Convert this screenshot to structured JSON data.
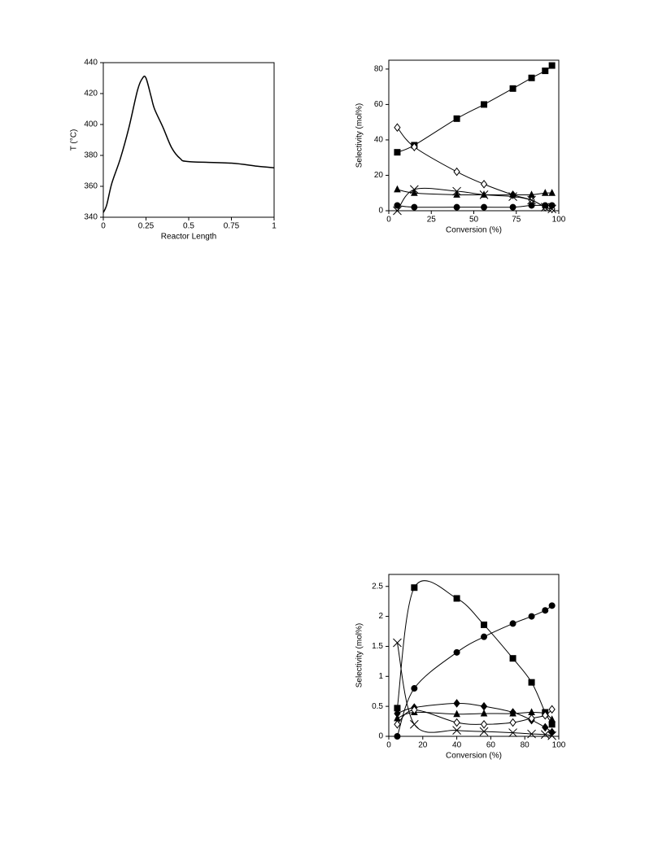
{
  "chart_data": [
    {
      "type": "line",
      "y_label": "T (°C)",
      "x_label": "Reactor Length",
      "x": [
        0,
        0.02,
        0.05,
        0.1,
        0.15,
        0.2,
        0.23,
        0.25,
        0.28,
        0.3,
        0.35,
        0.4,
        0.45,
        0.5,
        0.75,
        0.9,
        1
      ],
      "series": [
        {
          "color": "#000000",
          "values": [
            343,
            348,
            362,
            378,
            398,
            422,
            430,
            430,
            418,
            410,
            398,
            385,
            378,
            376,
            375,
            373,
            372
          ]
        }
      ],
      "xlim": [
        0,
        1
      ],
      "ylim": [
        340,
        440
      ],
      "xticks": [
        0,
        0.25,
        0.5,
        0.75,
        1
      ],
      "yticks": [
        340,
        360,
        380,
        400,
        420,
        440
      ]
    },
    {
      "type": "scatter",
      "y_label": "Selectivity (mol%)",
      "x_label": "Conversion (%)",
      "x": [
        5,
        15,
        40,
        56,
        73,
        84,
        92,
        96
      ],
      "series": [
        {
          "marker": "square",
          "color": "#000000",
          "values": [
            33,
            37,
            52,
            60,
            69,
            75,
            79,
            82
          ]
        },
        {
          "marker": "open-diamond",
          "color": "#000000",
          "values": [
            47,
            36,
            22,
            15,
            9,
            6,
            2,
            1
          ]
        },
        {
          "marker": "triangle",
          "color": "#000000",
          "values": [
            12,
            10,
            9,
            9,
            9,
            9,
            10,
            10
          ]
        },
        {
          "marker": "cross",
          "color": "#000000",
          "values": [
            0,
            12,
            11,
            9,
            8,
            6,
            2,
            1
          ]
        },
        {
          "marker": "circle",
          "color": "#000000",
          "values": [
            3,
            2,
            2,
            2,
            2,
            3,
            3,
            3
          ]
        }
      ],
      "xlim": [
        0,
        100
      ],
      "ylim": [
        0,
        85
      ],
      "xticks": [
        0,
        25,
        50,
        75,
        100
      ],
      "yticks": [
        0,
        20,
        40,
        60,
        80
      ]
    },
    {
      "type": "scatter",
      "y_label": "Selectivity (mol%)",
      "x_label": "Conversion (%)",
      "x": [
        5,
        15,
        40,
        56,
        73,
        84,
        92,
        96
      ],
      "series": [
        {
          "marker": "square",
          "color": "#000000",
          "values": [
            0.47,
            2.48,
            2.3,
            1.86,
            1.3,
            0.9,
            0.4,
            0.2
          ]
        },
        {
          "marker": "circle",
          "color": "#000000",
          "values": [
            0,
            0.8,
            1.4,
            1.66,
            1.88,
            2.0,
            2.1,
            2.18
          ]
        },
        {
          "marker": "diamond",
          "color": "#000000",
          "values": [
            0.38,
            0.48,
            0.55,
            0.5,
            0.4,
            0.27,
            0.15,
            0.07
          ]
        },
        {
          "marker": "triangle",
          "color": "#000000",
          "values": [
            0.3,
            0.4,
            0.37,
            0.38,
            0.38,
            0.4,
            0.38,
            0.28
          ]
        },
        {
          "marker": "open-diamond",
          "color": "#000000",
          "values": [
            0.2,
            0.44,
            0.23,
            0.2,
            0.23,
            0.3,
            0.35,
            0.45
          ]
        },
        {
          "marker": "cross",
          "color": "#000000",
          "values": [
            1.56,
            0.2,
            0.1,
            0.08,
            0.06,
            0.04,
            0.03,
            0.01
          ]
        }
      ],
      "xlim": [
        0,
        100
      ],
      "ylim": [
        0,
        2.7
      ],
      "xticks": [
        0,
        20,
        40,
        60,
        80,
        100
      ],
      "yticks": [
        0,
        0.5,
        1,
        1.5,
        2,
        2.5
      ]
    }
  ]
}
